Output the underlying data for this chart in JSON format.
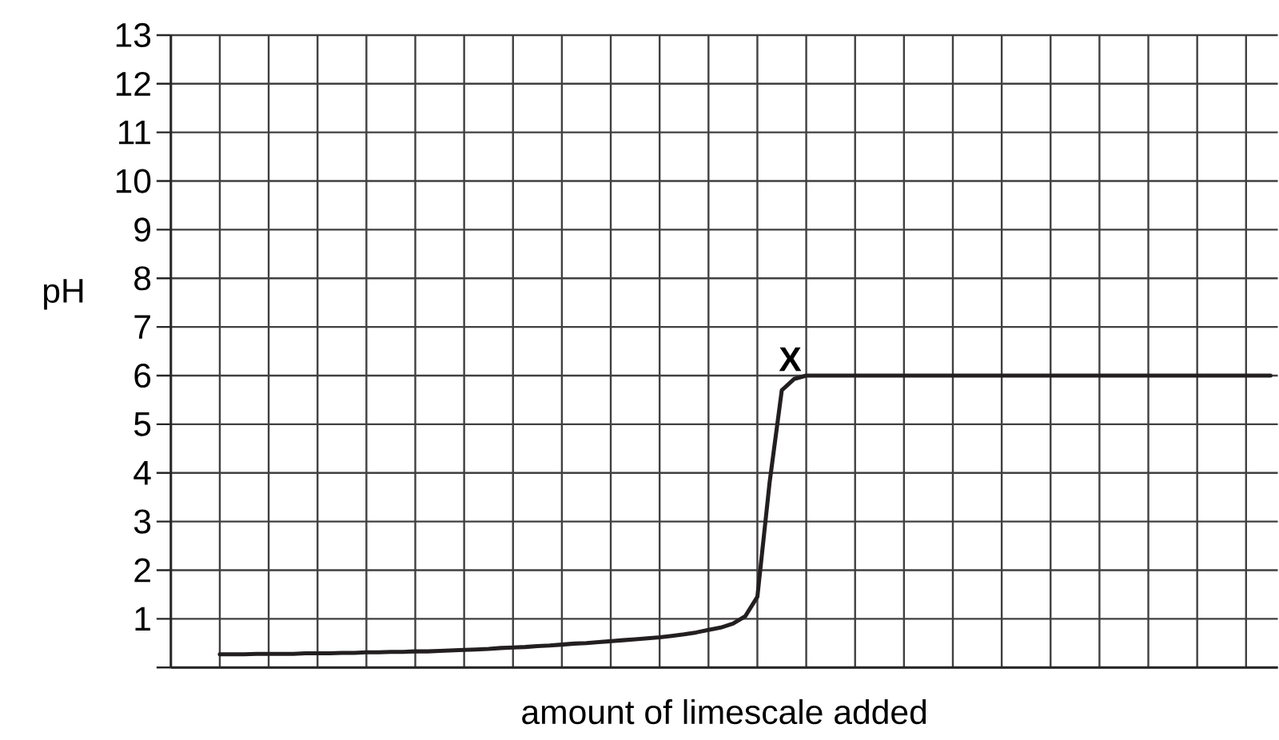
{
  "chart_data": {
    "type": "line",
    "xlabel": "amount of limescale added",
    "ylabel": "pH",
    "categories": [
      null,
      null,
      null,
      null,
      null,
      null,
      null,
      null,
      null,
      null,
      null,
      null,
      null,
      null,
      null,
      null,
      null,
      null,
      null,
      null,
      null,
      null,
      null,
      null,
      null,
      null,
      null,
      null,
      null,
      null,
      null,
      null,
      null,
      null,
      null,
      null,
      null,
      null,
      null,
      null,
      null,
      null,
      null,
      null,
      null,
      null,
      null,
      null,
      null,
      null,
      null,
      null,
      null,
      null,
      null,
      null,
      null,
      null,
      null,
      null,
      null,
      null,
      null,
      null,
      null,
      null,
      null,
      null,
      null,
      null,
      null,
      null,
      null,
      null,
      null,
      null,
      null,
      null,
      null,
      null,
      null,
      null,
      null,
      null,
      null,
      null,
      null
    ],
    "values": [
      0.27,
      0.27,
      0.27,
      0.28,
      0.28,
      0.28,
      0.28,
      0.29,
      0.29,
      0.29,
      0.3,
      0.3,
      0.31,
      0.31,
      0.32,
      0.32,
      0.33,
      0.33,
      0.34,
      0.35,
      0.36,
      0.37,
      0.38,
      0.4,
      0.41,
      0.42,
      0.44,
      0.45,
      0.47,
      0.49,
      0.5,
      0.52,
      0.54,
      0.56,
      0.58,
      0.6,
      0.62,
      0.65,
      0.68,
      0.72,
      0.77,
      0.82,
      0.9,
      1.05,
      1.45,
      3.8,
      5.7,
      5.93,
      6.0,
      6.0,
      6.0,
      6.0,
      6.0,
      6.0,
      6.0,
      6.0,
      6.0,
      6.0,
      6.0,
      6.0,
      6.0,
      6.0,
      6.0,
      6.0,
      6.0,
      6.0,
      6.0,
      6.0,
      6.0,
      6.0,
      6.0,
      6.0,
      6.0,
      6.0,
      6.0,
      6.0,
      6.0,
      6.0,
      6.0,
      6.0,
      6.0,
      6.0,
      6.0,
      6.0,
      6.0,
      6.0,
      6.0
    ],
    "color": "#231f20",
    "line_style": "solid",
    "marker": "none",
    "ylim": [
      0,
      13
    ],
    "yticks": [
      {
        "value": 0,
        "label": null
      },
      1,
      2,
      3,
      4,
      5,
      6,
      7,
      8,
      9,
      10,
      11,
      12,
      13
    ],
    "grid": true,
    "tick_labels": "y",
    "annotations": [
      {
        "text": "X",
        "y": 6
      }
    ]
  }
}
